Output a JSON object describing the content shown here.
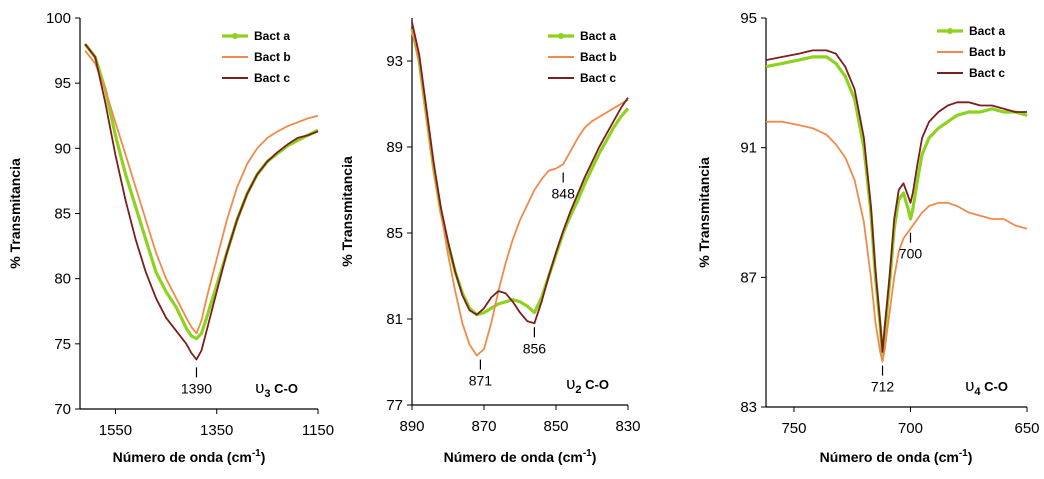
{
  "colors": {
    "bact_a": "#8ed21f",
    "bact_b": "#f08a4b",
    "bact_c": "#7a1e1e",
    "axis": "#000000"
  },
  "chart_data": [
    {
      "type": "line",
      "xlabel": "Número de onda (cm",
      "xlabel_sup": "-1",
      "xlabel_close": ")",
      "ylabel": "% Transmitancia",
      "xlim": [
        1620,
        1150
      ],
      "ylim": [
        70,
        100
      ],
      "xticks": [
        1550,
        1350,
        1150
      ],
      "yticks": [
        70,
        75,
        80,
        85,
        90,
        95,
        100
      ],
      "legend": {
        "position": "top-right",
        "entries": [
          "Bact a",
          "Bact b",
          "Bact c"
        ]
      },
      "annotation": {
        "text": "υ3 C-O",
        "main": "υ",
        "sub": "3",
        "rest": " C-O"
      },
      "peak_labels": [
        {
          "text": "1390",
          "x": 1390,
          "y": 73.5
        }
      ],
      "series": [
        {
          "name": "Bact a",
          "x": [
            1610,
            1590,
            1570,
            1550,
            1530,
            1510,
            1490,
            1470,
            1450,
            1430,
            1410,
            1400,
            1390,
            1380,
            1370,
            1350,
            1330,
            1310,
            1290,
            1270,
            1250,
            1230,
            1210,
            1190,
            1170,
            1150
          ],
          "y": [
            98,
            97,
            94.5,
            91,
            88,
            85.5,
            83,
            80.5,
            79,
            77.8,
            76.2,
            75.6,
            75.4,
            75.8,
            77,
            79.5,
            82,
            84.5,
            86.5,
            88,
            89,
            89.6,
            90.2,
            90.6,
            91,
            91.4
          ]
        },
        {
          "name": "Bact b",
          "x": [
            1610,
            1590,
            1570,
            1550,
            1530,
            1510,
            1490,
            1470,
            1450,
            1430,
            1410,
            1400,
            1390,
            1380,
            1370,
            1350,
            1330,
            1310,
            1290,
            1270,
            1250,
            1230,
            1210,
            1190,
            1170,
            1150
          ],
          "y": [
            97.5,
            96.5,
            94.5,
            92,
            89.5,
            87,
            84.5,
            82,
            80,
            78.5,
            77,
            76.3,
            75.8,
            76.8,
            78.5,
            81.5,
            84.5,
            87,
            88.8,
            90,
            90.8,
            91.3,
            91.7,
            92,
            92.3,
            92.5
          ]
        },
        {
          "name": "Bact c",
          "x": [
            1610,
            1590,
            1570,
            1550,
            1530,
            1510,
            1490,
            1470,
            1450,
            1430,
            1410,
            1400,
            1390,
            1380,
            1370,
            1350,
            1330,
            1310,
            1290,
            1270,
            1250,
            1230,
            1210,
            1190,
            1170,
            1150
          ],
          "y": [
            98,
            97,
            93.5,
            89.5,
            86,
            83,
            80.5,
            78.5,
            77,
            76,
            75,
            74.3,
            73.8,
            74.5,
            76,
            79,
            82,
            84.5,
            86.5,
            88,
            89,
            89.7,
            90.3,
            90.8,
            91,
            91.3
          ]
        }
      ]
    },
    {
      "type": "line",
      "xlabel": "Número de onda (cm",
      "xlabel_sup": "-1",
      "xlabel_close": ")",
      "ylabel": "% Transmitancia",
      "xlim": [
        890,
        830
      ],
      "ylim": [
        77,
        95
      ],
      "xticks": [
        890,
        870,
        850,
        830
      ],
      "yticks": [
        77,
        81,
        85,
        89,
        93
      ],
      "legend": {
        "position": "top-right",
        "entries": [
          "Bact a",
          "Bact b",
          "Bact c"
        ]
      },
      "annotation": {
        "text": "υ2 C-O",
        "main": "υ",
        "sub": "2",
        "rest": " C-O"
      },
      "peak_labels": [
        {
          "text": "871",
          "x": 871,
          "y": 79.3
        },
        {
          "text": "856",
          "x": 856,
          "y": 80.8
        },
        {
          "text": "848",
          "x": 848,
          "y": 88.0
        }
      ],
      "series": [
        {
          "name": "Bact a",
          "x": [
            890,
            888,
            886,
            884,
            882,
            880,
            878,
            876,
            874,
            872,
            870,
            868,
            866,
            864,
            862,
            860,
            858,
            856,
            854,
            852,
            850,
            848,
            846,
            844,
            842,
            840,
            838,
            836,
            834,
            832,
            830
          ],
          "y": [
            94.5,
            93,
            90.5,
            88,
            86,
            84.5,
            83.2,
            82.2,
            81.5,
            81.2,
            81.3,
            81.5,
            81.7,
            81.8,
            81.9,
            81.8,
            81.6,
            81.3,
            82,
            83,
            84,
            85,
            85.8,
            86.5,
            87.3,
            88,
            88.7,
            89.3,
            89.9,
            90.4,
            90.8
          ]
        },
        {
          "name": "Bact b",
          "x": [
            890,
            888,
            886,
            884,
            882,
            880,
            878,
            876,
            874,
            872,
            870,
            868,
            866,
            864,
            862,
            860,
            858,
            856,
            854,
            852,
            850,
            848,
            846,
            844,
            842,
            840,
            838,
            836,
            834,
            832,
            830
          ],
          "y": [
            94.5,
            93,
            90.5,
            88,
            86,
            84,
            82.3,
            80.8,
            79.8,
            79.3,
            79.6,
            80.8,
            82.3,
            83.6,
            84.7,
            85.6,
            86.3,
            87,
            87.5,
            87.9,
            88,
            88.2,
            88.8,
            89.4,
            89.9,
            90.2,
            90.4,
            90.6,
            90.8,
            91,
            91.2
          ]
        },
        {
          "name": "Bact c",
          "x": [
            890,
            888,
            886,
            884,
            882,
            880,
            878,
            876,
            874,
            872,
            870,
            868,
            866,
            864,
            862,
            860,
            858,
            856,
            854,
            852,
            850,
            848,
            846,
            844,
            842,
            840,
            838,
            836,
            834,
            832,
            830
          ],
          "y": [
            94.8,
            93.3,
            90.8,
            88.3,
            86.2,
            84.6,
            83.2,
            82.1,
            81.4,
            81.2,
            81.5,
            82,
            82.3,
            82.2,
            81.8,
            81.3,
            80.9,
            80.8,
            81.8,
            83,
            84.1,
            85.1,
            86,
            86.8,
            87.6,
            88.3,
            89,
            89.6,
            90.2,
            90.8,
            91.3
          ]
        }
      ]
    },
    {
      "type": "line",
      "xlabel": "Número de onda (cm",
      "xlabel_sup": "-1",
      "xlabel_close": ")",
      "ylabel": "% Transmitancia",
      "xlim": [
        762,
        650
      ],
      "ylim": [
        83,
        95
      ],
      "xticks": [
        750,
        700,
        650
      ],
      "yticks": [
        83,
        87,
        91,
        95
      ],
      "legend": {
        "position": "top-right",
        "entries": [
          "Bact a",
          "Bact b",
          "Bact c"
        ]
      },
      "annotation": {
        "text": "υ4 C-O",
        "main": "υ",
        "sub": "4",
        "rest": " C-O"
      },
      "peak_labels": [
        {
          "text": "712",
          "x": 712,
          "y": 84.4
        },
        {
          "text": "700",
          "x": 700,
          "y": 88.5
        }
      ],
      "series": [
        {
          "name": "Bact a",
          "x": [
            762,
            755,
            748,
            742,
            736,
            732,
            728,
            724,
            720,
            717,
            715,
            713,
            712,
            711,
            709,
            707,
            705,
            703,
            701,
            700,
            699,
            697,
            695,
            692,
            688,
            684,
            680,
            675,
            670,
            665,
            660,
            655,
            650
          ],
          "y": [
            93.5,
            93.6,
            93.7,
            93.8,
            93.8,
            93.6,
            93.2,
            92.5,
            91,
            89,
            87,
            85.5,
            84.6,
            85.3,
            86.8,
            88.5,
            89.4,
            89.6,
            89.1,
            88.8,
            89.1,
            90,
            90.8,
            91.3,
            91.6,
            91.8,
            92,
            92.1,
            92.1,
            92.2,
            92.1,
            92.1,
            92
          ]
        },
        {
          "name": "Bact b",
          "x": [
            762,
            755,
            748,
            742,
            736,
            732,
            728,
            724,
            720,
            717,
            715,
            713,
            712,
            711,
            709,
            707,
            705,
            703,
            701,
            700,
            699,
            697,
            695,
            692,
            688,
            684,
            680,
            675,
            670,
            665,
            660,
            655,
            650
          ],
          "y": [
            91.8,
            91.8,
            91.7,
            91.6,
            91.4,
            91.1,
            90.7,
            90,
            88.7,
            87,
            85.6,
            84.7,
            84.4,
            84.8,
            85.9,
            87,
            87.8,
            88.2,
            88.4,
            88.5,
            88.6,
            88.8,
            89,
            89.2,
            89.3,
            89.3,
            89.2,
            89,
            88.9,
            88.8,
            88.8,
            88.6,
            88.5
          ]
        },
        {
          "name": "Bact c",
          "x": [
            762,
            755,
            748,
            742,
            736,
            732,
            728,
            724,
            720,
            717,
            715,
            713,
            712,
            711,
            709,
            707,
            705,
            703,
            701,
            700,
            699,
            697,
            695,
            692,
            688,
            684,
            680,
            675,
            670,
            665,
            660,
            655,
            650
          ],
          "y": [
            93.7,
            93.8,
            93.9,
            94,
            94,
            93.9,
            93.5,
            92.8,
            91.3,
            89.2,
            87.2,
            85.6,
            84.7,
            85.5,
            87,
            88.8,
            89.7,
            89.9,
            89.5,
            89.3,
            89.6,
            90.5,
            91.3,
            91.8,
            92.1,
            92.3,
            92.4,
            92.4,
            92.3,
            92.3,
            92.2,
            92.1,
            92.1
          ]
        }
      ]
    }
  ]
}
